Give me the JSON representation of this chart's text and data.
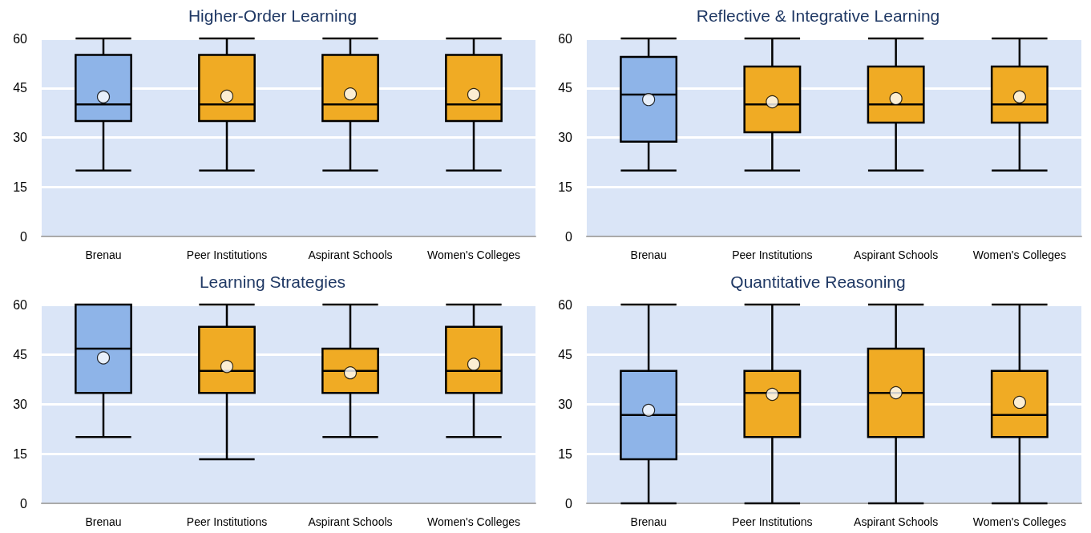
{
  "chart_data": [
    {
      "type": "box",
      "title": "Higher-Order Learning",
      "categories": [
        "Brenau",
        "Peer Institutions",
        "Aspirant Schools",
        "Women's Colleges"
      ],
      "colors": [
        "#8eb4e8",
        "#f0ab24",
        "#f0ab24",
        "#f0ab24"
      ],
      "ylim": [
        0,
        60
      ],
      "yticks": [
        0,
        15,
        30,
        45,
        60
      ],
      "grid": "y",
      "marker": "circle",
      "boxes": [
        {
          "low": 20,
          "q1": 35,
          "median": 40,
          "q3": 55,
          "high": 60,
          "mean": 42.3
        },
        {
          "low": 20,
          "q1": 35,
          "median": 40,
          "q3": 55,
          "high": 60,
          "mean": 42.5
        },
        {
          "low": 20,
          "q1": 35,
          "median": 40,
          "q3": 55,
          "high": 60,
          "mean": 43.2
        },
        {
          "low": 20,
          "q1": 35,
          "median": 40,
          "q3": 55,
          "high": 60,
          "mean": 43
        }
      ]
    },
    {
      "type": "box",
      "title": "Reflective & Integrative Learning",
      "categories": [
        "Brenau",
        "Peer Institutions",
        "Aspirant Schools",
        "Women's Colleges"
      ],
      "colors": [
        "#8eb4e8",
        "#f0ab24",
        "#f0ab24",
        "#f0ab24"
      ],
      "ylim": [
        0,
        60
      ],
      "yticks": [
        0,
        15,
        30,
        45,
        60
      ],
      "grid": "y",
      "marker": "circle",
      "boxes": [
        {
          "low": 20,
          "q1": 28.7,
          "median": 43,
          "q3": 54.4,
          "high": 60,
          "mean": 41.5
        },
        {
          "low": 20,
          "q1": 31.6,
          "median": 40,
          "q3": 51.5,
          "high": 60,
          "mean": 40.8
        },
        {
          "low": 20,
          "q1": 34.5,
          "median": 40,
          "q3": 51.5,
          "high": 60,
          "mean": 41.8
        },
        {
          "low": 20,
          "q1": 34.5,
          "median": 40,
          "q3": 51.5,
          "high": 60,
          "mean": 42.3
        }
      ]
    },
    {
      "type": "box",
      "title": "Learning Strategies",
      "categories": [
        "Brenau",
        "Peer Institutions",
        "Aspirant Schools",
        "Women's Colleges"
      ],
      "colors": [
        "#8eb4e8",
        "#f0ab24",
        "#f0ab24",
        "#f0ab24"
      ],
      "ylim": [
        0,
        60
      ],
      "yticks": [
        0,
        15,
        30,
        45,
        60
      ],
      "grid": "y",
      "marker": "circle",
      "boxes": [
        {
          "low": 20,
          "q1": 33.3,
          "median": 46.7,
          "q3": 60,
          "high": 60,
          "mean": 43.9
        },
        {
          "low": 13.3,
          "q1": 33.3,
          "median": 40,
          "q3": 53.3,
          "high": 60,
          "mean": 41.3
        },
        {
          "low": 20,
          "q1": 33.3,
          "median": 40,
          "q3": 46.7,
          "high": 60,
          "mean": 39.4
        },
        {
          "low": 20,
          "q1": 33.3,
          "median": 40,
          "q3": 53.3,
          "high": 60,
          "mean": 42
        }
      ]
    },
    {
      "type": "box",
      "title": "Quantitative Reasoning",
      "categories": [
        "Brenau",
        "Peer Institutions",
        "Aspirant Schools",
        "Women's Colleges"
      ],
      "colors": [
        "#8eb4e8",
        "#f0ab24",
        "#f0ab24",
        "#f0ab24"
      ],
      "ylim": [
        0,
        60
      ],
      "yticks": [
        0,
        15,
        30,
        45,
        60
      ],
      "grid": "y",
      "marker": "circle",
      "boxes": [
        {
          "low": 0,
          "q1": 13.3,
          "median": 26.7,
          "q3": 40,
          "high": 60,
          "mean": 28.1
        },
        {
          "low": 0,
          "q1": 20,
          "median": 33.3,
          "q3": 40,
          "high": 60,
          "mean": 32.9
        },
        {
          "low": 0,
          "q1": 20,
          "median": 33.3,
          "q3": 46.7,
          "high": 60,
          "mean": 33.4
        },
        {
          "low": 0,
          "q1": 20,
          "median": 26.7,
          "q3": 40,
          "high": 60,
          "mean": 30.5
        }
      ]
    }
  ]
}
